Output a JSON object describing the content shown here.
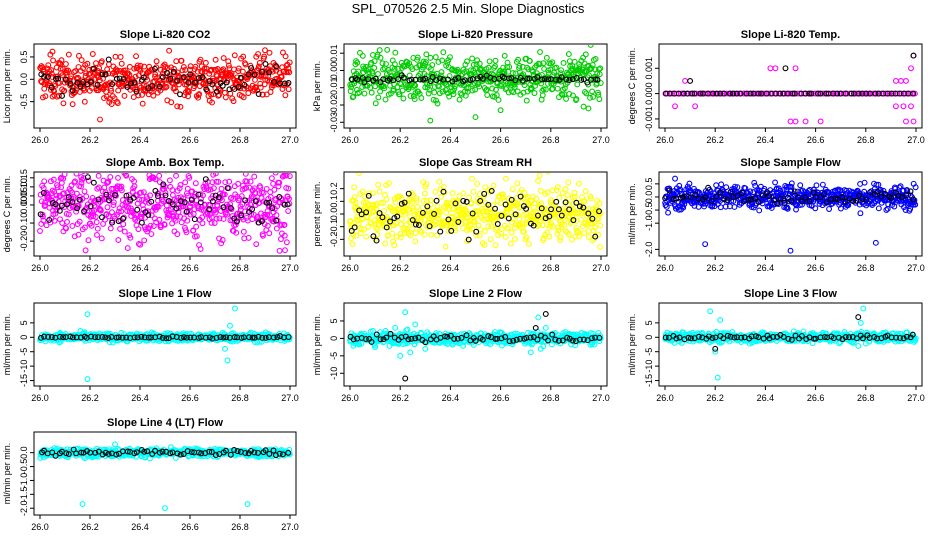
{
  "page": {
    "title": "SPL_070526  2.5 Min. Slope Diagnostics"
  },
  "colors": {
    "axis": "#000000",
    "background": "#ffffff"
  },
  "chart_data": [
    {
      "type": "scatter",
      "title": "Slope Li-820 CO2",
      "xlabel": "",
      "ylabel": "Licor ppm per min.",
      "xlim": [
        26.0,
        27.0
      ],
      "xticks": [
        "26.0",
        "26.2",
        "26.4",
        "26.6",
        "26.8",
        "27.0"
      ],
      "ylim": [
        -1.0,
        0.7
      ],
      "yticks": [
        {
          "v": 0.5,
          "label": "0.5"
        },
        {
          "v": 0.0,
          "label": "0.0"
        },
        {
          "v": -0.5,
          "label": "-0.5"
        }
      ],
      "series": [
        {
          "name": "primary",
          "color": "#ff0000",
          "n": 560,
          "spread": 0.3,
          "outliers": [
            {
              "x": 26.24,
              "y": -0.9
            },
            {
              "x": 26.9,
              "y": 0.65
            },
            {
              "x": 26.05,
              "y": 0.62
            }
          ]
        },
        {
          "name": "reference",
          "color": "#000000",
          "n": 70,
          "spread": 0.22,
          "outliers": []
        }
      ]
    },
    {
      "type": "scatter",
      "title": "Slope Li-820 Pressure",
      "xlabel": "",
      "ylabel": "kPa per min.",
      "xlim": [
        26.0,
        27.0
      ],
      "xticks": [
        "26.0",
        "26.2",
        "26.4",
        "26.6",
        "26.8",
        "27.0"
      ],
      "ylim": [
        -0.031,
        0.013
      ],
      "yticks": [
        {
          "v": 0.01,
          "label": "0.01"
        },
        {
          "v": 0.0,
          "label": "0.00"
        },
        {
          "v": -0.01,
          "label": "-0.01"
        },
        {
          "v": -0.02,
          "label": "-0.02"
        },
        {
          "v": -0.03,
          "label": "-0.03"
        }
      ],
      "series": [
        {
          "name": "primary",
          "color": "#00cc00",
          "n": 560,
          "spread": 0.008,
          "center": -0.004,
          "outliers": [
            {
              "x": 26.32,
              "y": -0.029
            },
            {
              "x": 26.5,
              "y": -0.027
            },
            {
              "x": 26.6,
              "y": -0.023
            },
            {
              "x": 26.95,
              "y": -0.022
            }
          ]
        },
        {
          "name": "reference",
          "color": "#000000",
          "n": 70,
          "spread": 0.001,
          "center": -0.005,
          "outliers": []
        }
      ]
    },
    {
      "type": "scatter",
      "title": "Slope Li-820 Temp.",
      "xlabel": "",
      "ylabel": "degrees C per min.",
      "xlim": [
        26.0,
        27.0
      ],
      "xticks": [
        "26.0",
        "26.2",
        "26.4",
        "26.6",
        "26.8",
        "27.0"
      ],
      "ylim": [
        -0.0012,
        0.0018
      ],
      "yticks": [
        {
          "v": 0.001,
          "label": "0.001"
        },
        {
          "v": 0.0,
          "label": "0.000"
        },
        {
          "v": -0.001,
          "label": "-0.001"
        }
      ],
      "series": [
        {
          "name": "primary",
          "color": "#ff00ff",
          "n": 120,
          "spread": 0,
          "center": 0,
          "outliers": [
            {
              "x": 26.08,
              "y": 0.0005
            },
            {
              "x": 26.12,
              "y": -0.0005
            },
            {
              "x": 26.04,
              "y": -0.0005
            },
            {
              "x": 26.42,
              "y": 0.001
            },
            {
              "x": 26.44,
              "y": 0.001
            },
            {
              "x": 26.52,
              "y": 0.001
            },
            {
              "x": 26.5,
              "y": -0.0011
            },
            {
              "x": 26.52,
              "y": -0.0011
            },
            {
              "x": 26.56,
              "y": -0.0011
            },
            {
              "x": 26.62,
              "y": -0.0011
            },
            {
              "x": 26.92,
              "y": 0.0005
            },
            {
              "x": 26.94,
              "y": 0.0005
            },
            {
              "x": 26.96,
              "y": 0.0005
            },
            {
              "x": 26.92,
              "y": -0.0005
            },
            {
              "x": 26.95,
              "y": -0.0005
            },
            {
              "x": 26.98,
              "y": -0.0005
            },
            {
              "x": 26.96,
              "y": -0.0011
            },
            {
              "x": 26.99,
              "y": -0.0011
            },
            {
              "x": 26.98,
              "y": 0.001
            },
            {
              "x": 26.99,
              "y": 0.0015
            }
          ]
        },
        {
          "name": "reference",
          "color": "#000000",
          "n": 60,
          "spread": 0,
          "center": 0,
          "outliers": [
            {
              "x": 26.1,
              "y": 0.0005
            },
            {
              "x": 26.48,
              "y": 0.001
            },
            {
              "x": 26.99,
              "y": 0.0015
            }
          ]
        }
      ]
    },
    {
      "type": "scatter",
      "title": "Slope Amb. Box Temp.",
      "xlabel": "",
      "ylabel": "degrees C per min.",
      "xlim": [
        26.0,
        27.0
      ],
      "xticks": [
        "26.0",
        "26.2",
        "26.4",
        "26.6",
        "26.8",
        "27.0"
      ],
      "ylim": [
        -0.26,
        0.16
      ],
      "yticks": [
        {
          "v": 0.15,
          "label": "0.15"
        },
        {
          "v": 0.1,
          "label": "0.10"
        },
        {
          "v": 0.05,
          "label": "0.05"
        },
        {
          "v": 0.0,
          "label": "0.00"
        },
        {
          "v": -0.1,
          "label": "-0.10"
        },
        {
          "v": -0.2,
          "label": "-0.20"
        }
      ],
      "series": [
        {
          "name": "primary",
          "color": "#ff00ff",
          "n": 620,
          "spread": 0.12,
          "outliers": [
            {
              "x": 26.98,
              "y": -0.25
            }
          ]
        },
        {
          "name": "reference",
          "color": "#000000",
          "n": 70,
          "spread": 0.07,
          "outliers": []
        }
      ]
    },
    {
      "type": "scatter",
      "title": "Slope Gas Stream RH",
      "xlabel": "",
      "ylabel": "percent per min.",
      "xlim": [
        26.0,
        27.0
      ],
      "xticks": [
        "26.0",
        "26.2",
        "26.4",
        "26.6",
        "26.8",
        "27.0"
      ],
      "ylim": [
        -0.3,
        0.3
      ],
      "yticks": [
        {
          "v": 0.2,
          "label": "0.2"
        },
        {
          "v": 0.1,
          "label": "0.1"
        },
        {
          "v": 0.0,
          "label": "0.0"
        },
        {
          "v": -0.1,
          "label": "-0.1"
        },
        {
          "v": -0.2,
          "label": "-0.2"
        }
      ],
      "series": [
        {
          "name": "primary",
          "color": "#ffff00",
          "n": 620,
          "spread": 0.14,
          "outliers": []
        },
        {
          "name": "reference",
          "color": "#000000",
          "n": 70,
          "spread": 0.11,
          "outliers": []
        }
      ]
    },
    {
      "type": "scatter",
      "title": "Slope Sample Flow",
      "xlabel": "",
      "ylabel": "ml/min per min.",
      "xlim": [
        26.0,
        27.0
      ],
      "xticks": [
        "26.0",
        "26.2",
        "26.4",
        "26.6",
        "26.8",
        "27.0"
      ],
      "ylim": [
        -2.1,
        0.8
      ],
      "yticks": [
        {
          "v": 0.5,
          "label": "0.5"
        },
        {
          "v": 0.0,
          "label": "0.0"
        },
        {
          "v": -0.5,
          "label": "-0.5"
        },
        {
          "v": -1.0,
          "label": "-1.0"
        },
        {
          "v": -2.0,
          "label": "-2.0"
        }
      ],
      "series": [
        {
          "name": "primary",
          "color": "#0000ff",
          "n": 600,
          "spread": 0.28,
          "outliers": [
            {
              "x": 26.16,
              "y": -1.8
            },
            {
              "x": 26.5,
              "y": -2.05
            },
            {
              "x": 26.84,
              "y": -1.75
            },
            {
              "x": 26.04,
              "y": 0.7
            }
          ]
        },
        {
          "name": "reference",
          "color": "#000000",
          "n": 70,
          "spread": 0.15,
          "outliers": []
        }
      ]
    },
    {
      "type": "scatter",
      "title": "Slope Line 1 Flow",
      "xlabel": "",
      "ylabel": "ml/min per min.",
      "xlim": [
        26.0,
        27.0
      ],
      "xticks": [
        "26.0",
        "26.2",
        "26.4",
        "26.6",
        "26.8",
        "27.0"
      ],
      "ylim": [
        -15.5,
        10.5
      ],
      "yticks": [
        {
          "v": 5,
          "label": "5"
        },
        {
          "v": 0,
          "label": "0"
        },
        {
          "v": -5,
          "label": "-5"
        },
        {
          "v": -10,
          "label": "-10"
        },
        {
          "v": -15,
          "label": "-15"
        }
      ],
      "series": [
        {
          "name": "primary",
          "color": "#00ffff",
          "n": 560,
          "spread": 0.9,
          "outliers": [
            {
              "x": 26.19,
              "y": -14.5
            },
            {
              "x": 26.19,
              "y": 8
            },
            {
              "x": 26.78,
              "y": 10
            },
            {
              "x": 26.75,
              "y": -8
            },
            {
              "x": 26.76,
              "y": 4
            },
            {
              "x": 26.74,
              "y": -4
            }
          ]
        },
        {
          "name": "reference",
          "color": "#000000",
          "n": 70,
          "spread": 0.25,
          "outliers": []
        }
      ]
    },
    {
      "type": "scatter",
      "title": "Slope Line 2 Flow",
      "xlabel": "",
      "ylabel": "ml/min per min.",
      "xlim": [
        26.0,
        27.0
      ],
      "xticks": [
        "26.0",
        "26.2",
        "26.4",
        "26.6",
        "26.8",
        "27.0"
      ],
      "ylim": [
        -12.5,
        9.0
      ],
      "yticks": [
        {
          "v": 5,
          "label": "5"
        },
        {
          "v": 0,
          "label": "0"
        },
        {
          "v": -5,
          "label": "-5"
        },
        {
          "v": -10,
          "label": "-10"
        }
      ],
      "series": [
        {
          "name": "primary",
          "color": "#00ffff",
          "n": 560,
          "spread": 1.1,
          "outliers": [
            {
              "x": 26.22,
              "y": 7.5
            },
            {
              "x": 26.2,
              "y": -5
            },
            {
              "x": 26.24,
              "y": -4
            },
            {
              "x": 26.18,
              "y": 3
            },
            {
              "x": 26.26,
              "y": 4
            },
            {
              "x": 26.75,
              "y": 6
            },
            {
              "x": 26.72,
              "y": -4
            },
            {
              "x": 26.76,
              "y": -3
            },
            {
              "x": 26.78,
              "y": 3
            },
            {
              "x": 26.1,
              "y": -2.5
            },
            {
              "x": 26.3,
              "y": -3
            }
          ]
        },
        {
          "name": "reference",
          "color": "#000000",
          "n": 70,
          "spread": 0.6,
          "outliers": [
            {
              "x": 26.22,
              "y": -11.5
            },
            {
              "x": 26.74,
              "y": 3
            },
            {
              "x": 26.78,
              "y": 7
            }
          ]
        }
      ]
    },
    {
      "type": "scatter",
      "title": "Slope Line 3 Flow",
      "xlabel": "",
      "ylabel": "ml/min per min.",
      "xlim": [
        26.0,
        27.0
      ],
      "xticks": [
        "26.0",
        "26.2",
        "26.4",
        "26.6",
        "26.8",
        "27.0"
      ],
      "ylim": [
        -15.5,
        10.5
      ],
      "yticks": [
        {
          "v": 5,
          "label": "5"
        },
        {
          "v": 0,
          "label": "0"
        },
        {
          "v": -5,
          "label": "-5"
        },
        {
          "v": -10,
          "label": "-10"
        },
        {
          "v": -15,
          "label": "-15"
        }
      ],
      "series": [
        {
          "name": "primary",
          "color": "#00ffff",
          "n": 560,
          "spread": 1.1,
          "outliers": [
            {
              "x": 26.21,
              "y": -14
            },
            {
              "x": 26.18,
              "y": 9
            },
            {
              "x": 26.22,
              "y": 6
            },
            {
              "x": 26.2,
              "y": -5
            },
            {
              "x": 26.79,
              "y": 10
            },
            {
              "x": 26.78,
              "y": 5
            },
            {
              "x": 26.77,
              "y": -3
            }
          ]
        },
        {
          "name": "reference",
          "color": "#000000",
          "n": 70,
          "spread": 0.5,
          "outliers": [
            {
              "x": 26.2,
              "y": -4
            },
            {
              "x": 26.77,
              "y": 7
            }
          ]
        }
      ]
    },
    {
      "type": "scatter",
      "title": "Slope Line 4 (LT) Flow",
      "xlabel": "",
      "ylabel": "ml/min per min.",
      "xlim": [
        26.0,
        27.0
      ],
      "xticks": [
        "26.0",
        "26.2",
        "26.4",
        "26.6",
        "26.8",
        "27.0"
      ],
      "ylim": [
        -2.1,
        0.6
      ],
      "yticks": [
        {
          "v": 0.0,
          "label": "0.0"
        },
        {
          "v": -0.5,
          "label": "-0.5"
        },
        {
          "v": -1.0,
          "label": "-1.0"
        },
        {
          "v": -1.5,
          "label": "-1.5"
        },
        {
          "v": -2.0,
          "label": "-2.0"
        }
      ],
      "series": [
        {
          "name": "primary",
          "color": "#00ffff",
          "n": 560,
          "spread": 0.09,
          "outliers": [
            {
              "x": 26.17,
              "y": -1.85
            },
            {
              "x": 26.5,
              "y": -2.0
            },
            {
              "x": 26.83,
              "y": -1.85
            },
            {
              "x": 26.18,
              "y": -0.2
            },
            {
              "x": 26.3,
              "y": 0.3
            }
          ]
        },
        {
          "name": "reference",
          "color": "#000000",
          "n": 70,
          "spread": 0.07,
          "outliers": []
        }
      ]
    }
  ]
}
